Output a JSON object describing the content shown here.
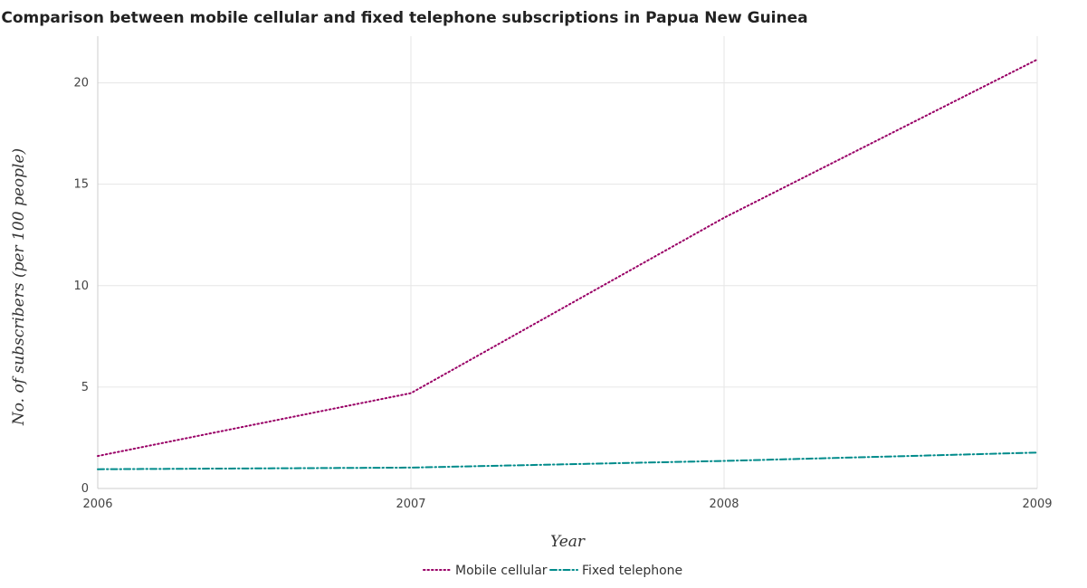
{
  "chart_data": {
    "type": "line",
    "title": "Comparison between mobile cellular and fixed telephone subscriptions in Papua New Guinea",
    "xlabel": "Year",
    "ylabel": "No. of subscribers (per 100 people)",
    "x": [
      "2006",
      "2007",
      "2008",
      "2009"
    ],
    "y_ticks": [
      "0",
      "5",
      "10",
      "15",
      "20"
    ],
    "ylim": [
      0,
      22.3
    ],
    "grid": true,
    "legend_position": "bottom-center",
    "series": [
      {
        "name": "Mobile cellular",
        "values": [
          1.6,
          4.7,
          13.35,
          21.15
        ],
        "color": "#990066",
        "dash": "dotted"
      },
      {
        "name": "Fixed telephone",
        "values": [
          0.95,
          1.03,
          1.36,
          1.77
        ],
        "color": "#008b8b",
        "dash": "dash-dot"
      }
    ]
  }
}
